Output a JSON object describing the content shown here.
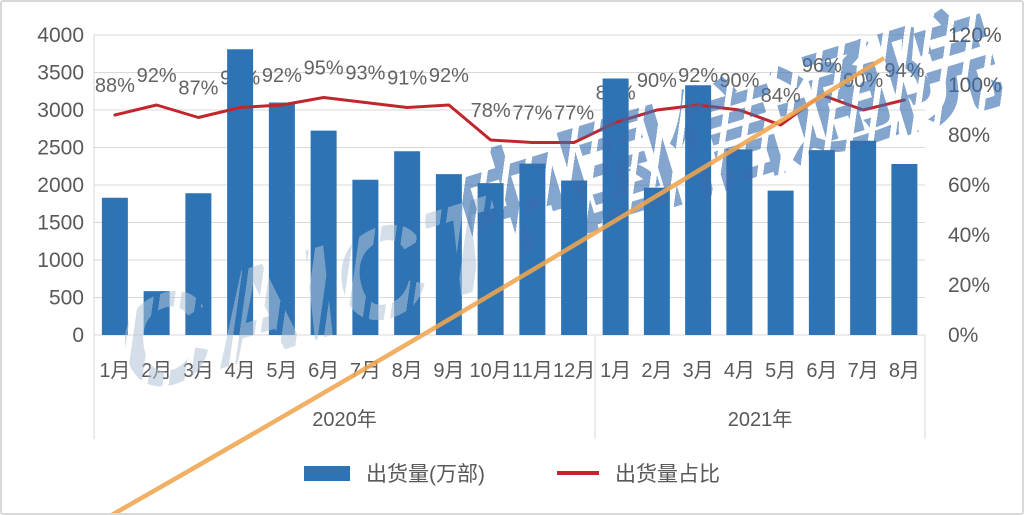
{
  "watermark": {
    "caict": "CAICT",
    "cn": "中国信通院"
  },
  "legend": {
    "bar_label": "出货量(万部)",
    "line_label": "出货量占比"
  },
  "colors": {
    "bar": "#2e74b5",
    "line": "#c0272d",
    "grid": "#d9d9d9",
    "axis_text": "#595959",
    "data_label_text": "#636363",
    "watermark_blue": "rgba(56,110,175,0.62)",
    "watermark_gray": "rgba(176,194,213,0.55)",
    "swoosh_orange": "#efa54d"
  },
  "chart_data": {
    "type": "bar+line",
    "title": "",
    "grid": true,
    "legend_position": "bottom",
    "groups": [
      {
        "label": "2020年",
        "count": 12
      },
      {
        "label": "2021年",
        "count": 8
      }
    ],
    "categories": [
      "1月",
      "2月",
      "3月",
      "4月",
      "5月",
      "6月",
      "7月",
      "8月",
      "9月",
      "10月",
      "11月",
      "12月",
      "1月",
      "2月",
      "3月",
      "4月",
      "5月",
      "6月",
      "7月",
      "8月"
    ],
    "series": [
      {
        "name": "出货量(万部)",
        "type": "bar",
        "color": "#2e74b5",
        "values": [
          1830,
          585,
          1890,
          3810,
          3100,
          2725,
          2070,
          2450,
          2145,
          2025,
          2285,
          2060,
          3420,
          1965,
          3330,
          2475,
          1925,
          2465,
          2590,
          2280
        ]
      },
      {
        "name": "出货量占比",
        "type": "line",
        "color": "#c0272d",
        "unit": "%",
        "values": [
          88,
          92,
          87,
          91,
          92,
          95,
          93,
          91,
          92,
          78,
          77,
          77,
          85,
          90,
          92,
          90,
          84,
          96,
          90,
          94
        ],
        "labels": [
          "88%",
          "92%",
          "87%",
          "91%",
          "92%",
          "95%",
          "93%",
          "91%",
          "92%",
          "78%",
          "77%",
          "77%",
          "85%",
          "90%",
          "92%",
          "90%",
          "84%",
          "96%",
          "90%",
          "94%"
        ]
      }
    ],
    "left_axis": {
      "min": 0,
      "max": 4000,
      "step": 500,
      "ticks": [
        "0",
        "500",
        "1000",
        "1500",
        "2000",
        "2500",
        "3000",
        "3500",
        "4000"
      ]
    },
    "right_axis": {
      "min": 0,
      "max": 120,
      "step": 20,
      "ticks": [
        "0%",
        "20%",
        "40%",
        "60%",
        "80%",
        "100%",
        "120%"
      ]
    }
  }
}
